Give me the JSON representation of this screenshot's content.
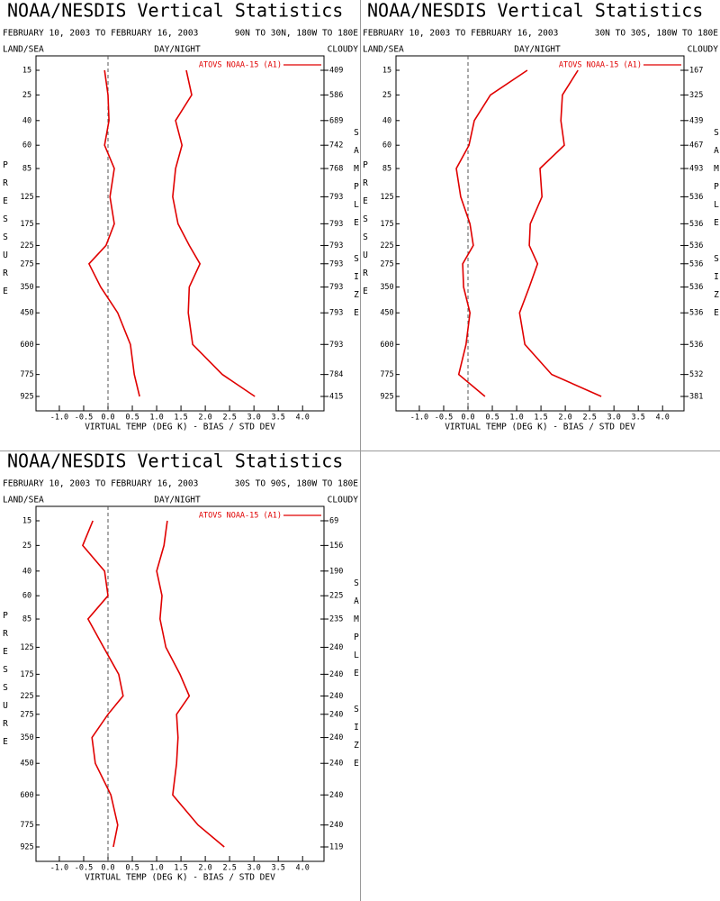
{
  "chart_data": [
    {
      "type": "line",
      "title": "NOAA/NESDIS Vertical Statistics",
      "subtitle": "FEBRUARY 10, 2003 TO FEBRUARY 16, 2003",
      "region": "90N TO 30N, 180W TO 180E",
      "land_sea_label": "LAND/SEA",
      "day_night_label": "DAY/NIGHT",
      "cloudy_label": "CLOUDY",
      "y_label": "PRESSURE",
      "y2_label": "SAMPLE SIZE",
      "x_label": "VIRTUAL TEMP (DEG K) - BIAS / STD DEV",
      "categories": [
        "15",
        "25",
        "40",
        "60",
        "85",
        "125",
        "175",
        "225",
        "275",
        "350",
        "450",
        "600",
        "775",
        "925"
      ],
      "sample_sizes": [
        409,
        586,
        689,
        742,
        768,
        793,
        793,
        793,
        793,
        793,
        793,
        793,
        784,
        415
      ],
      "series": [
        {
          "name": "ATOVS NOAA-15 (A1)",
          "color": "#e00000",
          "bias": [
            -0.07,
            0.0,
            0.02,
            -0.07,
            0.13,
            0.04,
            0.13,
            -0.04,
            -0.39,
            -0.15,
            0.2,
            0.46,
            0.54,
            0.65
          ],
          "std_dev": [
            1.61,
            1.72,
            1.39,
            1.52,
            1.39,
            1.33,
            1.44,
            1.67,
            1.89,
            1.67,
            1.65,
            1.74,
            2.35,
            3.02
          ]
        }
      ],
      "xlim": [
        -1.48,
        4.44
      ],
      "xticks": [
        {
          "value": -1,
          "label": "-1.0"
        },
        -0.5,
        {
          "value": 0,
          "label": "0.0"
        },
        0.5,
        {
          "value": 1,
          "label": "1.0"
        },
        1.5,
        {
          "value": 2,
          "label": "2.0"
        },
        2.5,
        {
          "value": 3,
          "label": "3.0"
        },
        3.5,
        {
          "value": 4,
          "label": "4.0"
        }
      ]
    },
    {
      "type": "line",
      "title": "NOAA/NESDIS Vertical Statistics",
      "subtitle": "FEBRUARY 10, 2003 TO FEBRUARY 16, 2003",
      "region": "30N TO 30S, 180W TO 180E",
      "land_sea_label": "LAND/SEA",
      "day_night_label": "DAY/NIGHT",
      "cloudy_label": "CLOUDY",
      "y_label": "PRESSURE",
      "y2_label": "SAMPLE SIZE",
      "x_label": "VIRTUAL TEMP (DEG K) - BIAS / STD DEV",
      "categories": [
        "15",
        "25",
        "40",
        "60",
        "85",
        "125",
        "175",
        "225",
        "275",
        "350",
        "450",
        "600",
        "775",
        "925"
      ],
      "sample_sizes": [
        167,
        325,
        439,
        467,
        493,
        536,
        536,
        536,
        536,
        536,
        536,
        536,
        532,
        381
      ],
      "series": [
        {
          "name": "ATOVS NOAA-15 (A1)",
          "color": "#e00000",
          "bias": [
            1.22,
            0.46,
            0.13,
            0.02,
            -0.24,
            -0.15,
            0.04,
            0.11,
            -0.11,
            -0.09,
            0.04,
            -0.04,
            -0.19,
            0.35
          ],
          "std_dev": [
            2.26,
            1.94,
            1.91,
            1.98,
            1.48,
            1.52,
            1.28,
            1.26,
            1.43,
            1.26,
            1.06,
            1.17,
            1.72,
            2.74
          ]
        }
      ],
      "xlim": [
        -1.48,
        4.44
      ],
      "xticks": [
        {
          "value": -1,
          "label": "-1.0"
        },
        -0.5,
        {
          "value": 0,
          "label": "0.0"
        },
        0.5,
        {
          "value": 1,
          "label": "1.0"
        },
        1.5,
        {
          "value": 2,
          "label": "2.0"
        },
        2.5,
        {
          "value": 3,
          "label": "3.0"
        },
        3.5,
        {
          "value": 4,
          "label": "4.0"
        }
      ]
    },
    {
      "type": "line",
      "title": "NOAA/NESDIS Vertical Statistics",
      "subtitle": "FEBRUARY 10, 2003 TO FEBRUARY 16, 2003",
      "region": "30S TO 90S, 180W TO 180E",
      "land_sea_label": "LAND/SEA",
      "day_night_label": "DAY/NIGHT",
      "cloudy_label": "CLOUDY",
      "y_label": "PRESSURE",
      "y2_label": "SAMPLE SIZE",
      "x_label": "VIRTUAL TEMP (DEG K) - BIAS / STD DEV",
      "categories": [
        "15",
        "25",
        "40",
        "60",
        "85",
        "125",
        "175",
        "225",
        "275",
        "350",
        "450",
        "600",
        "775",
        "925"
      ],
      "sample_sizes": [
        69,
        156,
        190,
        225,
        235,
        240,
        240,
        240,
        240,
        240,
        240,
        240,
        240,
        119
      ],
      "series": [
        {
          "name": "ATOVS NOAA-15 (A1)",
          "color": "#e00000",
          "bias": [
            -0.31,
            -0.52,
            -0.07,
            0.0,
            -0.41,
            -0.09,
            0.22,
            0.31,
            0.0,
            -0.33,
            -0.26,
            0.06,
            0.2,
            0.11
          ],
          "std_dev": [
            1.22,
            1.15,
            1.0,
            1.11,
            1.07,
            1.19,
            1.48,
            1.67,
            1.41,
            1.44,
            1.41,
            1.33,
            1.85,
            2.39
          ]
        }
      ],
      "xlim": [
        -1.48,
        4.44
      ],
      "xticks": [
        {
          "value": -1,
          "label": "-1.0"
        },
        -0.5,
        {
          "value": 0,
          "label": "0.0"
        },
        0.5,
        {
          "value": 1,
          "label": "1.0"
        },
        1.5,
        {
          "value": 2,
          "label": "2.0"
        },
        2.5,
        {
          "value": 3,
          "label": "3.0"
        },
        3.5,
        {
          "value": 4,
          "label": "4.0"
        }
      ]
    }
  ]
}
